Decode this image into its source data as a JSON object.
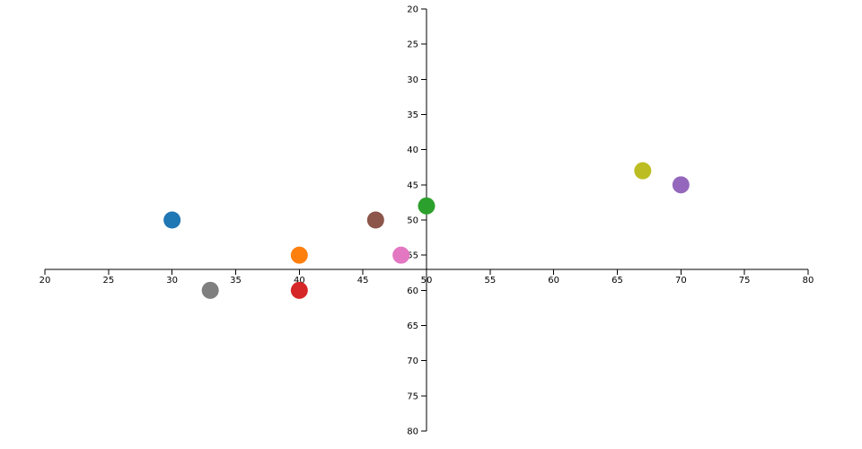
{
  "chart_data": {
    "type": "scatter",
    "x": [
      30,
      40,
      40,
      50,
      70,
      46,
      48,
      33,
      67
    ],
    "values": [
      50,
      55,
      60,
      48,
      45,
      50,
      55,
      60,
      43
    ],
    "colors": [
      "#1f77b4",
      "#ff7f0e",
      "#d62728",
      "#2ca02c",
      "#9467bd",
      "#8c564b",
      "#e377c2",
      "#7f7f7f",
      "#bcbd22"
    ],
    "xlim": [
      20,
      80
    ],
    "ylim": [
      20,
      80
    ],
    "y_inverted": true,
    "xticks": [
      20,
      25,
      30,
      35,
      40,
      45,
      50,
      55,
      60,
      65,
      70,
      75,
      80
    ],
    "yticks": [
      20,
      25,
      30,
      35,
      40,
      45,
      50,
      55,
      60,
      65,
      70,
      75,
      80
    ],
    "x_axis_at_y": 57,
    "y_axis_at_x": 50
  }
}
